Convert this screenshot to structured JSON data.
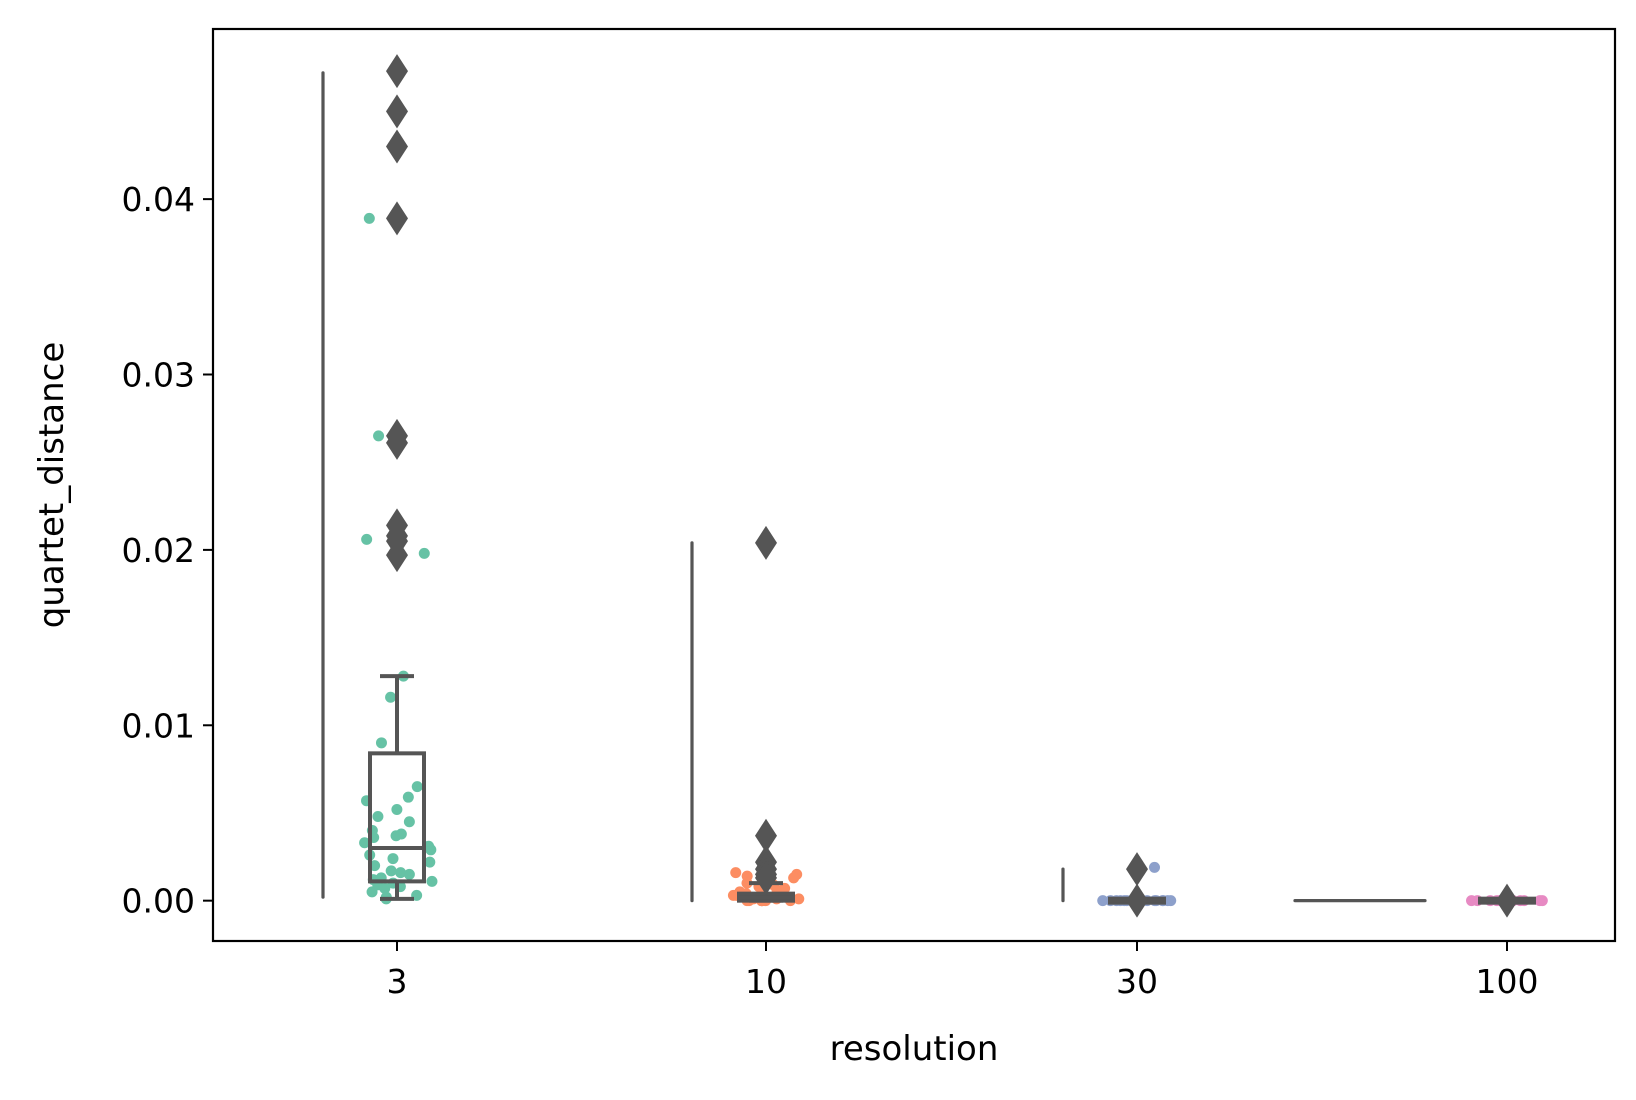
{
  "chart_data": {
    "type": "box",
    "title": "",
    "xlabel": "resolution",
    "ylabel": "quartet_distance",
    "categories": [
      "3",
      "10",
      "30",
      "100"
    ],
    "ylim": [
      -0.0023,
      0.0497
    ],
    "yticks": [
      0.0,
      0.01,
      0.02,
      0.03,
      0.04
    ],
    "ytick_labels": [
      "0.00",
      "0.01",
      "0.02",
      "0.03",
      "0.04"
    ],
    "grid": false,
    "legend": "none",
    "colors": {
      "box_line": "#555555",
      "strip": [
        "#66c2a5",
        "#fc8d62",
        "#8da0cb",
        "#e78ac3"
      ],
      "axis": "#000000"
    },
    "groups": [
      {
        "category": "3",
        "range_line": [
          0.0002,
          0.0472
        ],
        "box": {
          "q1": 0.0011,
          "median": 0.003,
          "q3": 0.0084,
          "whisker_low": 0.0001,
          "whisker_high": 0.0128
        },
        "outliers": [
          0.0473,
          0.045,
          0.043,
          0.0389,
          0.0265,
          0.0261,
          0.0214,
          0.0208,
          0.0205,
          0.0197
        ],
        "points": [
          0.0473,
          0.045,
          0.0389,
          0.0265,
          0.0261,
          0.0209,
          0.0206,
          0.0198,
          0.0128,
          0.0116,
          0.009,
          0.0065,
          0.0059,
          0.0057,
          0.0052,
          0.0048,
          0.0045,
          0.004,
          0.0038,
          0.0037,
          0.0036,
          0.0033,
          0.0031,
          0.0029,
          0.0026,
          0.0024,
          0.0022,
          0.002,
          0.0017,
          0.0016,
          0.0015,
          0.0013,
          0.0012,
          0.0011,
          0.001,
          0.0009,
          0.0008,
          0.0007,
          0.0005,
          0.0003,
          0.0002,
          0.0001
        ]
      },
      {
        "category": "10",
        "range_line": [
          0.0,
          0.0204
        ],
        "box": {
          "q1": 0.0,
          "median": 0.0002,
          "q3": 0.0004,
          "whisker_low": 0.0,
          "whisker_high": 0.001
        },
        "outliers": [
          0.0204,
          0.0037,
          0.0022,
          0.0018,
          0.0015,
          0.0013
        ],
        "points": [
          0.0016,
          0.0015,
          0.0014,
          0.0013,
          0.0012,
          0.001,
          0.0009,
          0.0008,
          0.0007,
          0.0006,
          0.0005,
          0.0004,
          0.0004,
          0.0003,
          0.0003,
          0.0002,
          0.0002,
          0.0001,
          0.0001,
          0.0001,
          0.0,
          0.0,
          0.0,
          0.0,
          0.0,
          0.0,
          0.0,
          0.0
        ]
      },
      {
        "category": "30",
        "range_line": [
          0.0,
          0.0018
        ],
        "box": {
          "q1": 0.0,
          "median": 0.0,
          "q3": 0.0,
          "whisker_low": 0.0,
          "whisker_high": 0.0
        },
        "outliers": [
          0.0018,
          0.0
        ],
        "points": [
          0.0019,
          0.0,
          0.0,
          0.0,
          0.0,
          0.0,
          0.0,
          0.0,
          0.0,
          0.0,
          0.0,
          0.0,
          0.0,
          0.0,
          0.0
        ]
      },
      {
        "category": "100",
        "range_line": [
          0.0,
          0.0
        ],
        "box": {
          "q1": 0.0,
          "median": 0.0,
          "q3": 0.0,
          "whisker_low": 0.0,
          "whisker_high": 0.0
        },
        "outliers": [
          0.0
        ],
        "points": [
          0.0,
          0.0,
          0.0,
          0.0,
          0.0,
          0.0,
          0.0,
          0.0,
          0.0,
          0.0,
          0.0,
          0.0
        ]
      }
    ]
  }
}
